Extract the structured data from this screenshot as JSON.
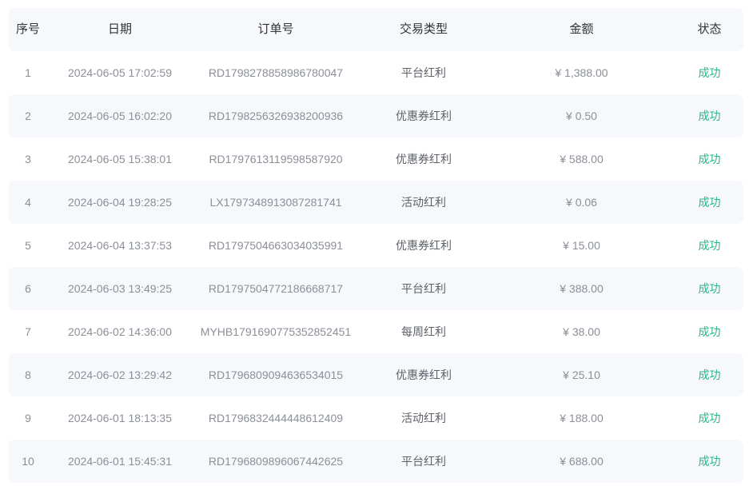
{
  "table": {
    "columns": [
      "序号",
      "日期",
      "订单号",
      "交易类型",
      "金额",
      "状态"
    ],
    "rows": [
      {
        "index": "1",
        "date": "2024-06-05 17:02:59",
        "order_no": "RD1798278858986780047",
        "type": "平台红利",
        "amount": "¥ 1,388.00",
        "status": "成功"
      },
      {
        "index": "2",
        "date": "2024-06-05 16:02:20",
        "order_no": "RD1798256326938200936",
        "type": "优惠券红利",
        "amount": "¥ 0.50",
        "status": "成功"
      },
      {
        "index": "3",
        "date": "2024-06-05 15:38:01",
        "order_no": "RD1797613119598587920",
        "type": "优惠券红利",
        "amount": "¥ 588.00",
        "status": "成功"
      },
      {
        "index": "4",
        "date": "2024-06-04 19:28:25",
        "order_no": "LX1797348913087281741",
        "type": "活动红利",
        "amount": "¥ 0.06",
        "status": "成功"
      },
      {
        "index": "5",
        "date": "2024-06-04 13:37:53",
        "order_no": "RD1797504663034035991",
        "type": "优惠券红利",
        "amount": "¥ 15.00",
        "status": "成功"
      },
      {
        "index": "6",
        "date": "2024-06-03 13:49:25",
        "order_no": "RD1797504772186668717",
        "type": "平台红利",
        "amount": "¥ 388.00",
        "status": "成功"
      },
      {
        "index": "7",
        "date": "2024-06-02 14:36:00",
        "order_no": "MYHB1791690775352852451",
        "type": "每周红利",
        "amount": "¥ 38.00",
        "status": "成功"
      },
      {
        "index": "8",
        "date": "2024-06-02 13:29:42",
        "order_no": "RD1796809094636534015",
        "type": "优惠券红利",
        "amount": "¥ 25.10",
        "status": "成功"
      },
      {
        "index": "9",
        "date": "2024-06-01 18:13:35",
        "order_no": "RD1796832444448612409",
        "type": "活动红利",
        "amount": "¥ 188.00",
        "status": "成功"
      },
      {
        "index": "10",
        "date": "2024-06-01 15:45:31",
        "order_no": "RD1796809896067442625",
        "type": "平台红利",
        "amount": "¥ 688.00",
        "status": "成功"
      }
    ]
  },
  "colors": {
    "success": "#26b787",
    "stripe": "#f7f8fb",
    "header-text": "#303236",
    "body-text": "#8b8f98",
    "type-text": "#5d6168"
  }
}
